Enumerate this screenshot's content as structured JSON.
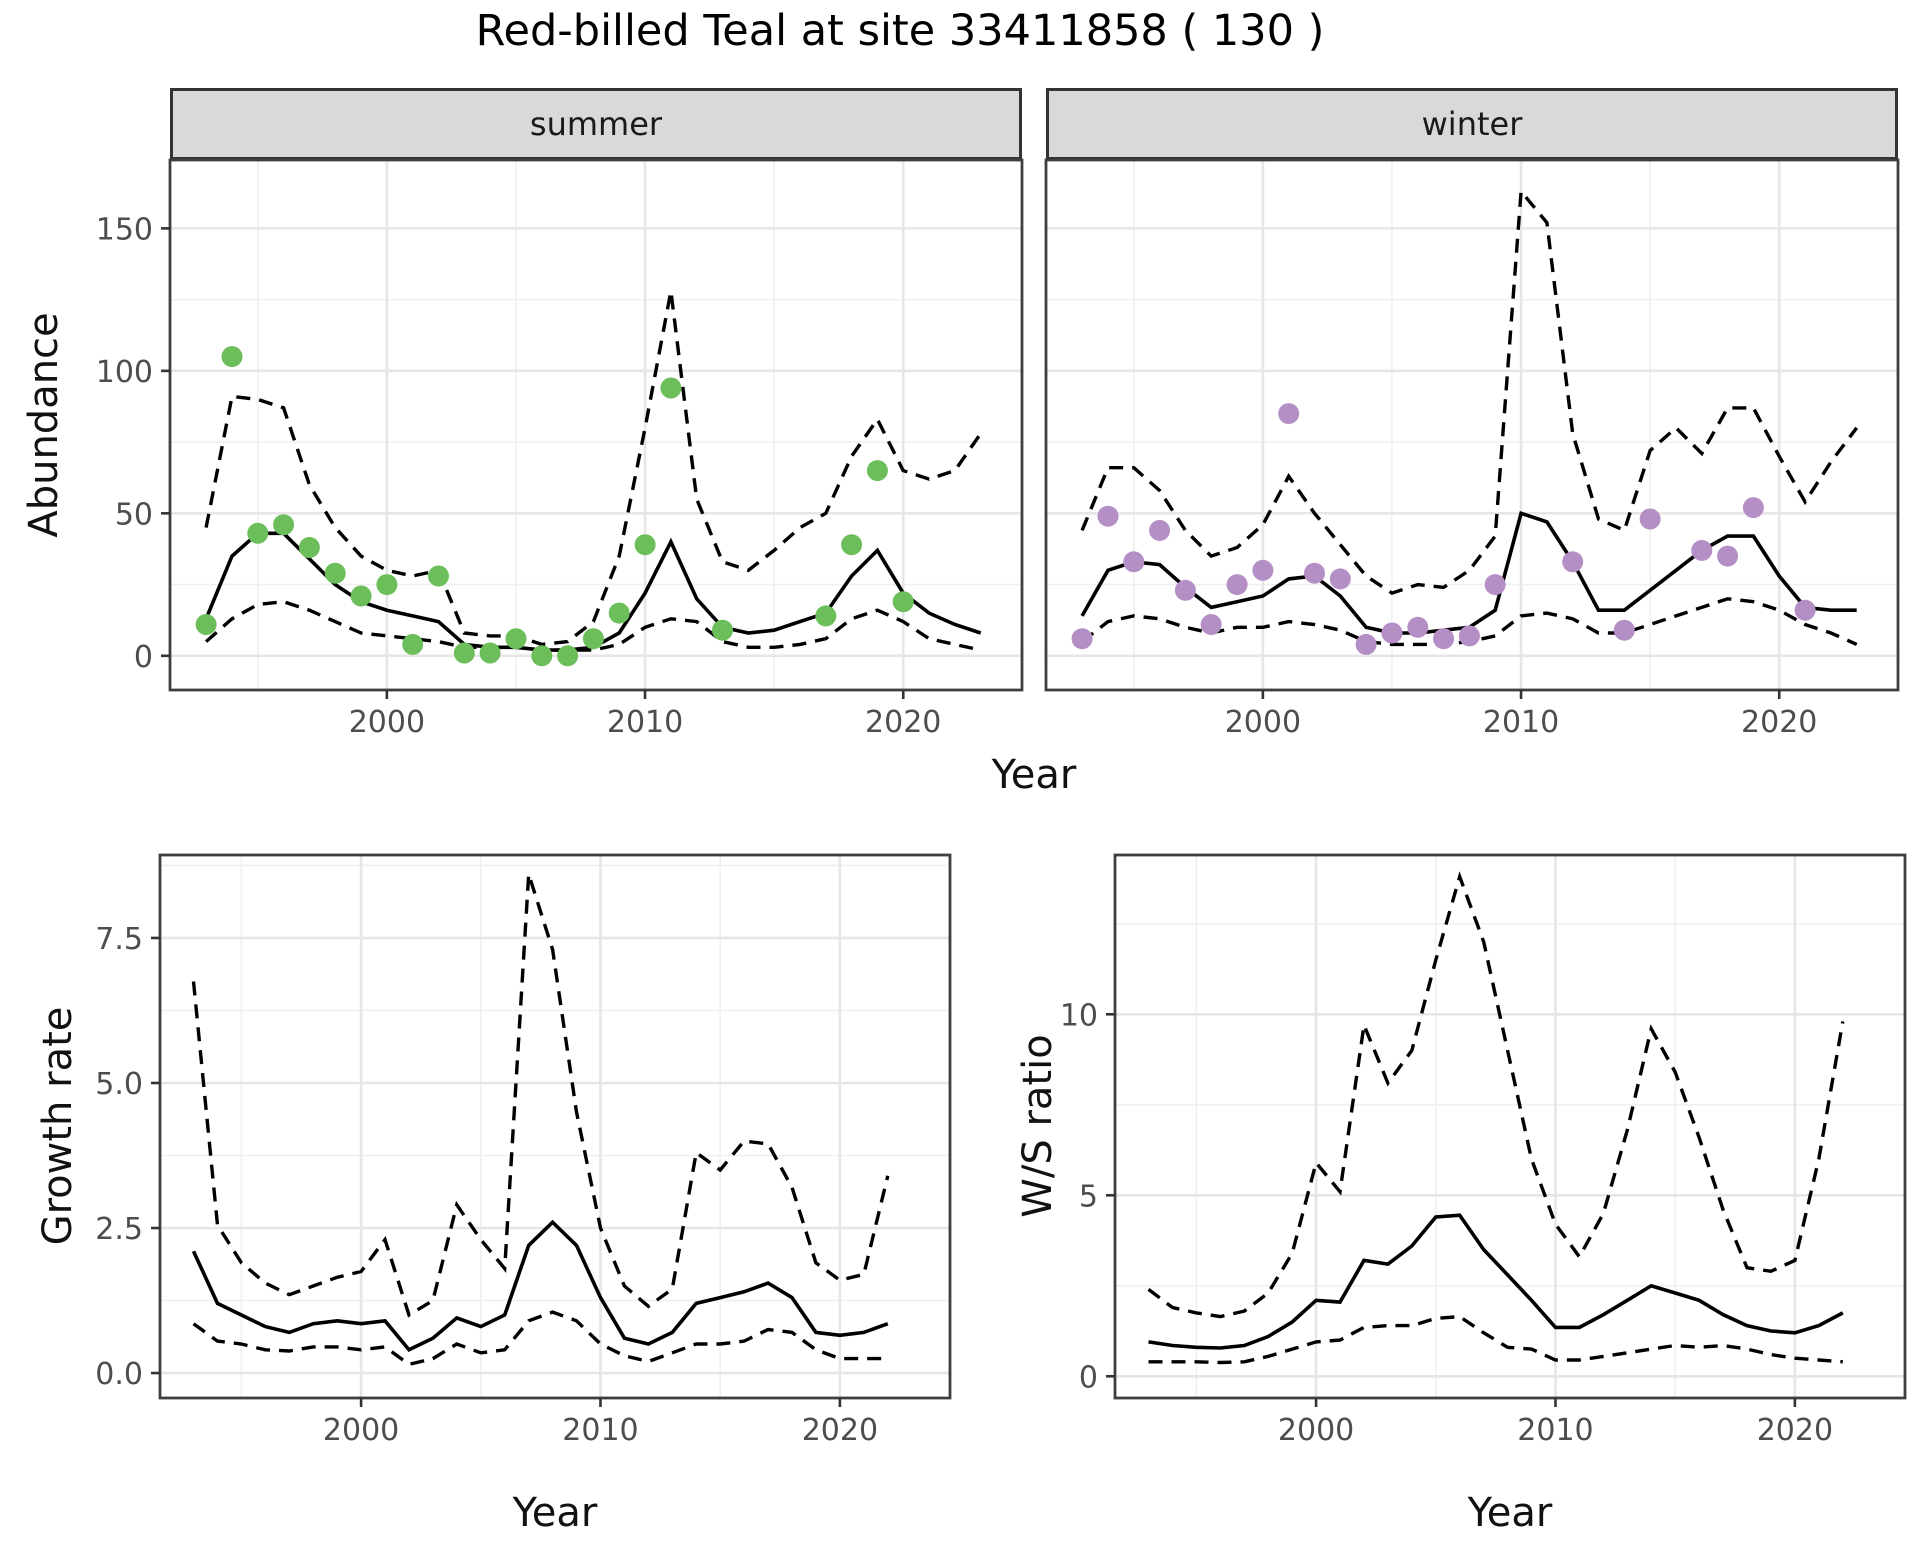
{
  "title": "Red-billed Teal at site 33411858 ( 130 )",
  "facets": {
    "summer": "summer",
    "winter": "winter"
  },
  "labels": {
    "y_top": "Abundance",
    "x_top": "Year",
    "y_bottom_left": "Growth rate",
    "x_bottom_left": "Year",
    "y_bottom_right": "W/S ratio",
    "x_bottom_right": "Year"
  },
  "colors": {
    "summer_point": "#6cbe5b",
    "winter_point": "#b48fc6",
    "line": "#000000",
    "grid_major": "#e6e6e6",
    "grid_minor": "#f0f0f0",
    "panel_border": "#3f3f3f",
    "strip_bg": "#d9d9d9",
    "tick_text": "#4d4d4d"
  },
  "chart_data": [
    {
      "id": "abundance_summer",
      "type": "line",
      "facet": "summer",
      "title": "summer abundance with observed counts and CI band (dashed)",
      "xlabel": "Year",
      "ylabel": "Abundance",
      "xlim": [
        1991.6,
        2024.6
      ],
      "ylim": [
        -12,
        174
      ],
      "xticks": {
        "labels": [
          "2000",
          "2010",
          "2020"
        ],
        "values": [
          2000,
          2010,
          2020
        ],
        "minor": [
          1995,
          2005,
          2015
        ]
      },
      "yticks": {
        "labels": [
          "0",
          "50",
          "100",
          "150"
        ],
        "values": [
          0,
          50,
          100,
          150
        ],
        "minor": [
          25,
          75,
          125
        ]
      },
      "x": [
        1993,
        1994,
        1995,
        1996,
        1997,
        1998,
        1999,
        2000,
        2001,
        2002,
        2003,
        2004,
        2005,
        2006,
        2007,
        2008,
        2009,
        2010,
        2011,
        2012,
        2013,
        2014,
        2015,
        2016,
        2017,
        2018,
        2019,
        2020,
        2021,
        2022,
        2023
      ],
      "series": [
        {
          "name": "mean",
          "style": "solid",
          "values": [
            13,
            35,
            43,
            43,
            34,
            25,
            19,
            16,
            14,
            12,
            4,
            3,
            3,
            2,
            2,
            3,
            8,
            22,
            40,
            20,
            10,
            8,
            9,
            12,
            15,
            28,
            37,
            22,
            15,
            11,
            8
          ]
        },
        {
          "name": "lower_ci",
          "style": "dashed",
          "values": [
            5,
            13,
            18,
            19,
            16,
            12,
            8,
            7,
            6,
            5,
            3,
            3,
            3,
            2,
            2,
            2,
            4,
            10,
            13,
            12,
            5,
            3,
            3,
            4,
            6,
            13,
            16,
            12,
            6,
            4,
            2
          ]
        },
        {
          "name": "upper_ci",
          "style": "dashed",
          "values": [
            45,
            91,
            90,
            87,
            60,
            45,
            35,
            30,
            28,
            30,
            8,
            7,
            7,
            4,
            5,
            12,
            35,
            80,
            128,
            55,
            33,
            30,
            37,
            45,
            50,
            70,
            83,
            65,
            62,
            65,
            78
          ]
        }
      ],
      "observations": {
        "color": "#6cbe5b",
        "years": [
          1993,
          1994,
          1995,
          1996,
          1997,
          1998,
          1999,
          2000,
          2001,
          2002,
          2003,
          2004,
          2005,
          2006,
          2007,
          2008,
          2009,
          2010,
          2011,
          2013,
          2017,
          2018,
          2019,
          2020
        ],
        "values": [
          11,
          105,
          43,
          46,
          38,
          29,
          21,
          25,
          4,
          28,
          1,
          1,
          6,
          0,
          0,
          6,
          15,
          39,
          94,
          9,
          14,
          39,
          65,
          19
        ]
      }
    },
    {
      "id": "abundance_winter",
      "type": "line",
      "facet": "winter",
      "title": "winter abundance with observed counts and CI band (dashed)",
      "xlabel": "Year",
      "ylabel": "Abundance",
      "xlim": [
        1991.6,
        2024.6
      ],
      "ylim": [
        -12,
        174
      ],
      "xticks": {
        "labels": [
          "2000",
          "2010",
          "2020"
        ],
        "values": [
          2000,
          2010,
          2020
        ],
        "minor": [
          1995,
          2005,
          2015
        ]
      },
      "yticks": {
        "labels": [],
        "values": [
          0,
          50,
          100,
          150
        ],
        "minor": [
          25,
          75,
          125
        ]
      },
      "x": [
        1993,
        1994,
        1995,
        1996,
        1997,
        1998,
        1999,
        2000,
        2001,
        2002,
        2003,
        2004,
        2005,
        2006,
        2007,
        2008,
        2009,
        2010,
        2011,
        2012,
        2013,
        2014,
        2015,
        2016,
        2017,
        2018,
        2019,
        2020,
        2021,
        2022,
        2023
      ],
      "series": [
        {
          "name": "mean",
          "style": "solid",
          "values": [
            14,
            30,
            33,
            32,
            24,
            17,
            19,
            21,
            27,
            28,
            21,
            10,
            8,
            8,
            9,
            10,
            16,
            50,
            47,
            33,
            16,
            16,
            23,
            30,
            37,
            42,
            42,
            28,
            17,
            16,
            16
          ]
        },
        {
          "name": "lower_ci",
          "style": "dashed",
          "values": [
            5,
            12,
            14,
            13,
            10,
            8,
            10,
            10,
            12,
            11,
            9,
            5,
            4,
            4,
            4,
            5,
            7,
            14,
            15,
            13,
            8,
            8,
            11,
            14,
            17,
            20,
            19,
            16,
            11,
            8,
            4
          ]
        },
        {
          "name": "upper_ci",
          "style": "dashed",
          "values": [
            44,
            66,
            66,
            58,
            44,
            35,
            38,
            46,
            63,
            50,
            39,
            28,
            22,
            25,
            24,
            30,
            42,
            163,
            152,
            78,
            48,
            44,
            72,
            80,
            71,
            87,
            87,
            70,
            54,
            68,
            80
          ]
        }
      ],
      "observations": {
        "color": "#b48fc6",
        "years": [
          1993,
          1994,
          1995,
          1996,
          1997,
          1998,
          1999,
          2000,
          2001,
          2002,
          2003,
          2004,
          2005,
          2006,
          2007,
          2008,
          2009,
          2012,
          2014,
          2015,
          2017,
          2018,
          2019,
          2021
        ],
        "values": [
          6,
          49,
          33,
          44,
          23,
          11,
          25,
          30,
          85,
          29,
          27,
          4,
          8,
          10,
          6,
          7,
          25,
          33,
          9,
          48,
          37,
          35,
          52,
          16
        ]
      }
    },
    {
      "id": "growth_rate",
      "type": "line",
      "facet": null,
      "title": "growth rate with CI band (dashed)",
      "xlabel": "Year",
      "ylabel": "Growth rate",
      "xlim": [
        1991.6,
        2024.6
      ],
      "ylim": [
        -0.43,
        8.93
      ],
      "xticks": {
        "labels": [
          "2000",
          "2010",
          "2020"
        ],
        "values": [
          2000,
          2010,
          2020
        ],
        "minor": [
          1995,
          2005,
          2015
        ]
      },
      "yticks": {
        "labels": [
          "0.0",
          "2.5",
          "5.0",
          "7.5"
        ],
        "values": [
          0,
          2.5,
          5,
          7.5
        ],
        "minor": [
          1.25,
          3.75,
          6.25,
          8.75
        ]
      },
      "x": [
        1993,
        1994,
        1995,
        1996,
        1997,
        1998,
        1999,
        2000,
        2001,
        2002,
        2003,
        2004,
        2005,
        2006,
        2007,
        2008,
        2009,
        2010,
        2011,
        2012,
        2013,
        2014,
        2015,
        2016,
        2017,
        2018,
        2019,
        2020,
        2021,
        2022
      ],
      "series": [
        {
          "name": "mean",
          "style": "solid",
          "values": [
            2.1,
            1.2,
            1.0,
            0.8,
            0.7,
            0.85,
            0.9,
            0.85,
            0.9,
            0.4,
            0.6,
            0.95,
            0.8,
            1.0,
            2.2,
            2.6,
            2.2,
            1.3,
            0.6,
            0.5,
            0.7,
            1.2,
            1.3,
            1.4,
            1.55,
            1.3,
            0.7,
            0.65,
            0.7,
            0.85
          ]
        },
        {
          "name": "lower_ci",
          "style": "dashed",
          "values": [
            0.85,
            0.55,
            0.5,
            0.4,
            0.38,
            0.45,
            0.45,
            0.4,
            0.45,
            0.15,
            0.25,
            0.5,
            0.35,
            0.4,
            0.9,
            1.05,
            0.9,
            0.5,
            0.3,
            0.2,
            0.35,
            0.5,
            0.5,
            0.55,
            0.75,
            0.7,
            0.4,
            0.25,
            0.25,
            0.25
          ]
        },
        {
          "name": "upper_ci",
          "style": "dashed",
          "values": [
            6.75,
            2.55,
            1.9,
            1.55,
            1.35,
            1.5,
            1.65,
            1.75,
            2.3,
            1.0,
            1.25,
            2.9,
            2.3,
            1.8,
            8.6,
            7.3,
            4.5,
            2.5,
            1.5,
            1.15,
            1.45,
            3.8,
            3.5,
            4.0,
            3.95,
            3.2,
            1.9,
            1.6,
            1.7,
            3.4
          ]
        }
      ],
      "observations": null
    },
    {
      "id": "ws_ratio",
      "type": "line",
      "facet": null,
      "title": "winter/summer ratio with CI band (dashed)",
      "xlabel": "Year",
      "ylabel": "W/S ratio",
      "xlim": [
        1991.6,
        2024.6
      ],
      "ylim": [
        -0.6,
        14.4
      ],
      "xticks": {
        "labels": [
          "2000",
          "2010",
          "2020"
        ],
        "values": [
          2000,
          2010,
          2020
        ],
        "minor": [
          1995,
          2005,
          2015
        ]
      },
      "yticks": {
        "labels": [
          "0",
          "5",
          "10"
        ],
        "values": [
          0,
          5,
          10
        ],
        "minor": [
          2.5,
          7.5,
          12.5
        ]
      },
      "x": [
        1993,
        1994,
        1995,
        1996,
        1997,
        1998,
        1999,
        2000,
        2001,
        2002,
        2003,
        2004,
        2005,
        2006,
        2007,
        2008,
        2009,
        2010,
        2011,
        2012,
        2013,
        2014,
        2015,
        2016,
        2017,
        2018,
        2019,
        2020,
        2021,
        2022
      ],
      "series": [
        {
          "name": "mean",
          "style": "solid",
          "values": [
            0.95,
            0.85,
            0.8,
            0.78,
            0.85,
            1.1,
            1.5,
            2.1,
            2.05,
            3.2,
            3.1,
            3.6,
            4.4,
            4.45,
            3.5,
            2.8,
            2.1,
            1.35,
            1.35,
            1.7,
            2.1,
            2.5,
            2.3,
            2.1,
            1.7,
            1.4,
            1.25,
            1.2,
            1.4,
            1.75
          ]
        },
        {
          "name": "lower_ci",
          "style": "dashed",
          "values": [
            0.4,
            0.4,
            0.4,
            0.38,
            0.4,
            0.55,
            0.75,
            0.95,
            1.0,
            1.35,
            1.4,
            1.4,
            1.6,
            1.65,
            1.2,
            0.8,
            0.75,
            0.45,
            0.45,
            0.55,
            0.65,
            0.75,
            0.85,
            0.8,
            0.85,
            0.75,
            0.6,
            0.5,
            0.45,
            0.4
          ]
        },
        {
          "name": "upper_ci",
          "style": "dashed",
          "values": [
            2.4,
            1.9,
            1.75,
            1.65,
            1.8,
            2.3,
            3.4,
            5.9,
            5.1,
            9.7,
            8.1,
            9.0,
            11.5,
            13.8,
            12.0,
            9.0,
            6.0,
            4.2,
            3.3,
            4.5,
            6.8,
            9.6,
            8.4,
            6.6,
            4.6,
            3.0,
            2.9,
            3.2,
            6.0,
            9.8
          ]
        }
      ],
      "observations": null
    }
  ]
}
